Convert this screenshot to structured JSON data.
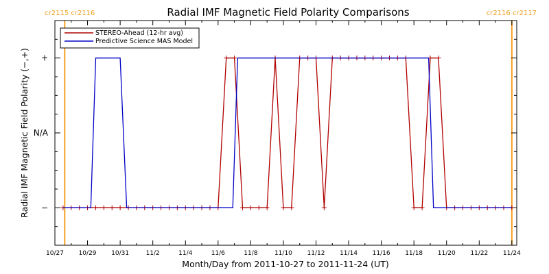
{
  "chart_data": {
    "type": "line",
    "title": "Radial IMF Magnetic Field Polarity Comparisons",
    "xlabel": "Month/Day from 2011-10-27 to 2011-11-24 (UT)",
    "ylabel": "Radial IMF Magnetic Field Polarity (−,+)",
    "xlim": [
      0,
      28.3
    ],
    "ylim": [
      -1.5,
      1.5
    ],
    "x_tick_labels": [
      "10/27",
      "10/29",
      "10/31",
      "11/2",
      "11/4",
      "11/6",
      "11/8",
      "11/10",
      "11/12",
      "11/14",
      "11/16",
      "11/18",
      "11/20",
      "11/22",
      "11/24"
    ],
    "x_tick_days": [
      0,
      2,
      4,
      6,
      8,
      10,
      12,
      14,
      16,
      18,
      20,
      22,
      24,
      26,
      28
    ],
    "y_ticks": [
      {
        "value": 1,
        "label": "+"
      },
      {
        "value": 0,
        "label": "N/A"
      },
      {
        "value": -1,
        "label": "−"
      }
    ],
    "carrington": [
      {
        "x": 0.6,
        "labels": [
          "cr2115",
          "cr2116"
        ],
        "align": "left"
      },
      {
        "x": 28.0,
        "labels": [
          "cr2116",
          "cr2117"
        ],
        "align": "right"
      }
    ],
    "legend": {
      "position": "top-left",
      "entries": [
        "STEREO-Ahead (12-hr avg)",
        "Predictive Science MAS Model"
      ]
    },
    "series": [
      {
        "name": "STEREO-Ahead (12-hr avg)",
        "color": "#b00000",
        "markers": true,
        "x": [
          0.5,
          1,
          1.5,
          2,
          2.5,
          3,
          3.5,
          4,
          4.5,
          5,
          5.5,
          6,
          6.5,
          7,
          7.5,
          8,
          8.5,
          9,
          9.5,
          10,
          10.5,
          11,
          11.5,
          12,
          12.5,
          13,
          13.5,
          14,
          14.5,
          15,
          15.5,
          16,
          16.5,
          17,
          17.5,
          18,
          18.5,
          19,
          19.5,
          20,
          20.5,
          21,
          21.5,
          22,
          22.5,
          23,
          23.5,
          24,
          24.5,
          25,
          25.5,
          26,
          26.5,
          27,
          27.5,
          28
        ],
        "values": [
          -1,
          -1,
          -1,
          -1,
          -1,
          -1,
          -1,
          -1,
          -1,
          -1,
          -1,
          -1,
          -1,
          -1,
          -1,
          -1,
          -1,
          -1,
          -1,
          -1,
          1,
          1,
          -1,
          -1,
          -1,
          -1,
          1,
          -1,
          -1,
          1,
          1,
          1,
          -1,
          1,
          1,
          1,
          1,
          1,
          1,
          1,
          1,
          1,
          1,
          -1,
          -1,
          1,
          1,
          -1,
          -1,
          -1,
          -1,
          -1,
          -1,
          -1,
          -1,
          -1
        ]
      },
      {
        "name": "Predictive Science MAS Model",
        "color": "#0000c8",
        "markers": false,
        "x": [
          0.5,
          2.2,
          2.5,
          4.0,
          4.4,
          10.9,
          11.2,
          22.9,
          23.2,
          28.0
        ],
        "values": [
          -1,
          -1,
          1,
          1,
          -1,
          -1,
          1,
          1,
          -1,
          -1
        ]
      }
    ]
  }
}
